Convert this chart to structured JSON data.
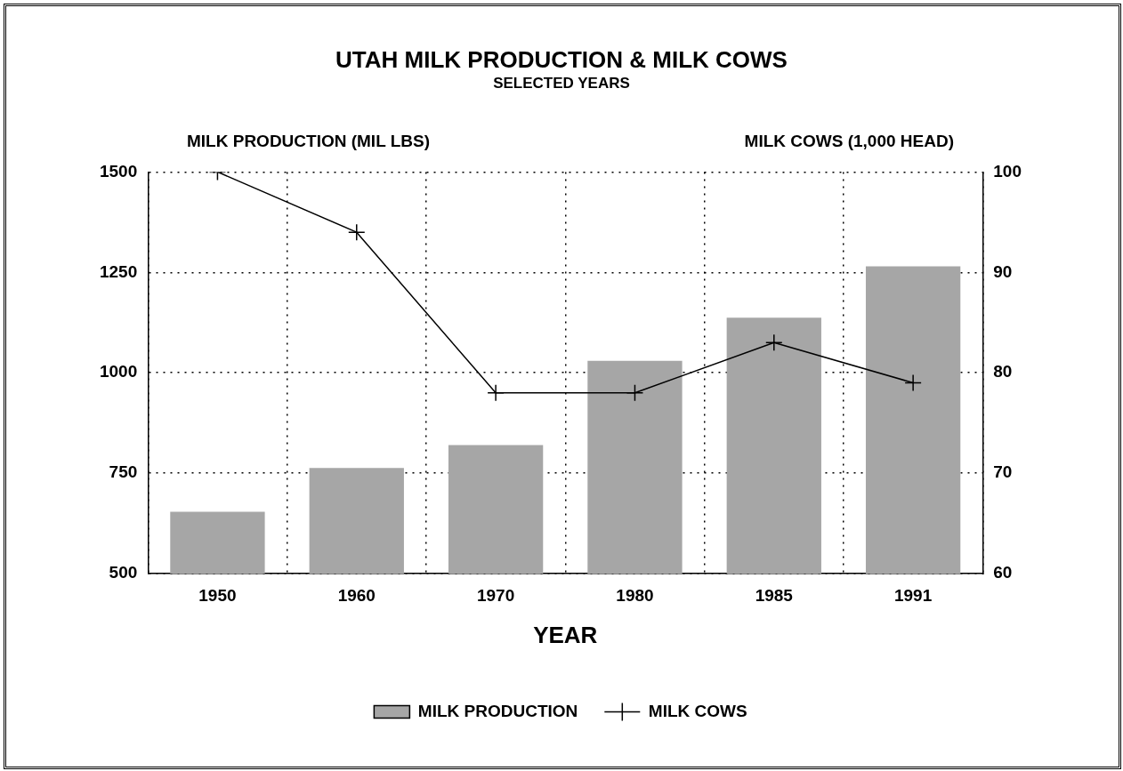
{
  "chart_data": {
    "type": "bar",
    "title": "UTAH MILK PRODUCTION & MILK COWS",
    "subtitle": "SELECTED YEARS",
    "xlabel": "YEAR",
    "ylabel": "MILK PRODUCTION (MIL LBS)",
    "y2label": "MILK COWS (1,000 HEAD)",
    "categories": [
      "1950",
      "1960",
      "1970",
      "1980",
      "1985",
      "1991"
    ],
    "series": [
      {
        "name": "MILK PRODUCTION",
        "color": "#a6a6a6",
        "values": [
          654,
          763,
          820,
          1030,
          1137,
          1265
        ]
      },
      {
        "name": "MILK COWS",
        "type": "line",
        "color": "#000000",
        "axis": "y2",
        "values": [
          100,
          94,
          78,
          78,
          83,
          79
        ]
      }
    ],
    "ylim": [
      500,
      1500
    ],
    "yticks": [
      500,
      750,
      1000,
      1250,
      1500
    ],
    "y2lim": [
      60,
      100
    ],
    "y2ticks": [
      60,
      70,
      80,
      90,
      100
    ],
    "grid": true,
    "legend": "bottom",
    "marker": "cross",
    "line_style": "solid"
  }
}
